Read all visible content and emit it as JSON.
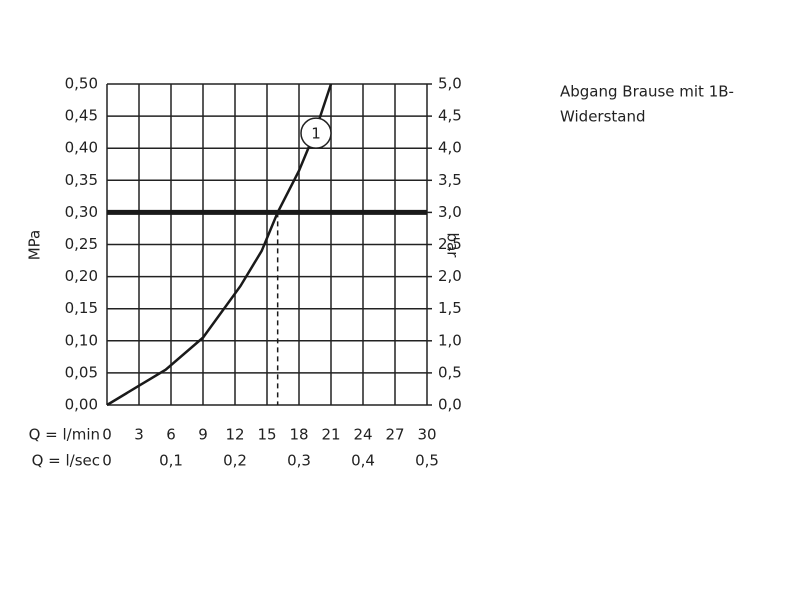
{
  "chart_data": {
    "type": "line",
    "x": [
      0,
      3,
      5.5,
      9,
      12.5,
      14.5,
      16,
      18,
      19.5,
      21
    ],
    "series": [
      {
        "name": "1",
        "color": "#1a1a1a",
        "values": [
          0,
          0.03,
          0.055,
          0.105,
          0.185,
          0.24,
          0.3,
          0.365,
          0.425,
          0.5
        ]
      }
    ],
    "xlim": [
      0,
      30
    ],
    "xticks": [
      0,
      3,
      6,
      9,
      12,
      15,
      18,
      21,
      24,
      27,
      30
    ],
    "x_label": "Q = l/min",
    "x2lim": [
      0,
      0.5
    ],
    "x2ticks": [
      0,
      {
        "value": 0.1,
        "label": "0,1"
      },
      {
        "value": 0.2,
        "label": "0,2"
      },
      {
        "value": 0.3,
        "label": "0,3"
      },
      {
        "value": 0.4,
        "label": "0,4"
      },
      {
        "value": 0.5,
        "label": "0,5"
      }
    ],
    "x2_label": "Q = l/sec",
    "ylim": [
      0,
      0.5
    ],
    "yticks": [
      {
        "value": 0,
        "label": "0,00"
      },
      {
        "value": 0.05,
        "label": "0,05"
      },
      {
        "value": 0.1,
        "label": "0,10"
      },
      {
        "value": 0.15,
        "label": "0,15"
      },
      {
        "value": 0.2,
        "label": "0,20"
      },
      {
        "value": 0.25,
        "label": "0,25"
      },
      {
        "value": 0.3,
        "label": "0,30"
      },
      {
        "value": 0.35,
        "label": "0,35"
      },
      {
        "value": 0.4,
        "label": "0,40"
      },
      {
        "value": 0.45,
        "label": "0,45"
      },
      {
        "value": 0.5,
        "label": "0,50"
      }
    ],
    "y_label": "MPa",
    "y2lim": [
      0,
      5
    ],
    "y2ticks": [
      {
        "value": 0,
        "label": "0,0"
      },
      {
        "value": 0.5,
        "label": "0,5"
      },
      {
        "value": 1,
        "label": "1,0"
      },
      {
        "value": 1.5,
        "label": "1,5"
      },
      {
        "value": 2,
        "label": "2,0"
      },
      {
        "value": 2.5,
        "label": "2,5"
      },
      {
        "value": 3,
        "label": "3,0"
      },
      {
        "value": 3.5,
        "label": "3,5"
      },
      {
        "value": 4,
        "label": "4,0"
      },
      {
        "value": 4.5,
        "label": "4,5"
      },
      {
        "value": 5,
        "label": "5,0"
      }
    ],
    "y2_label": "bar",
    "reference_y": 0.3,
    "reference_x": 16,
    "grid": true,
    "description_lines": [
      "Abgang Brause mit 1B-",
      "Widerstand"
    ]
  }
}
